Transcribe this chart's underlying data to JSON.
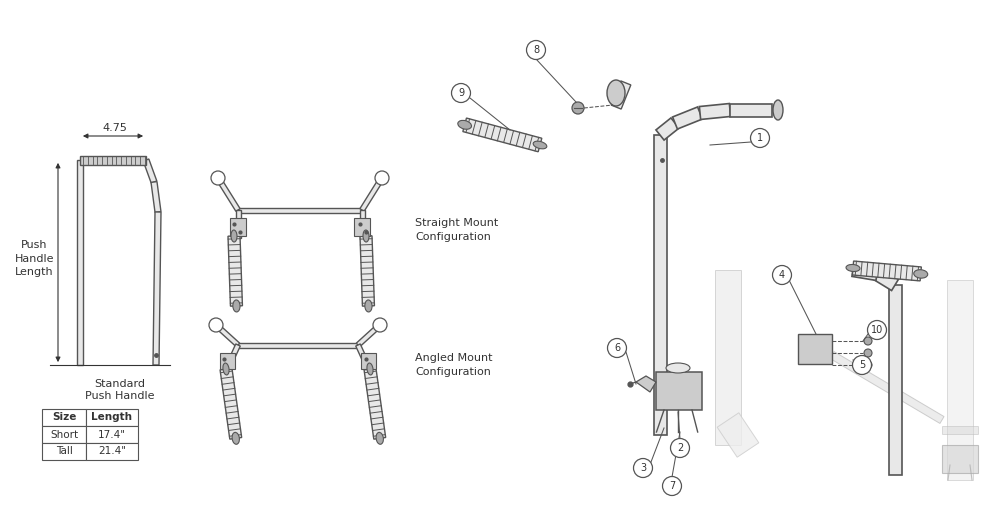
{
  "bg_color": "#ffffff",
  "lc": "#555555",
  "tc": "#333333",
  "fc_light": "#e8e8e8",
  "fc_mid": "#cccccc",
  "fc_dark": "#aaaaaa",
  "table_data": [
    [
      "Size",
      "Length"
    ],
    [
      "Short",
      "17.4\""
    ],
    [
      "Tall",
      "21.4\""
    ]
  ],
  "table_title": "Standard\nPush Handle",
  "dim_475": "4.75",
  "push_label": "Push\nHandle\nLength",
  "straight_label": "Straight Mount\nConfiguration",
  "angled_label": "Angled Mount\nConfiguration"
}
